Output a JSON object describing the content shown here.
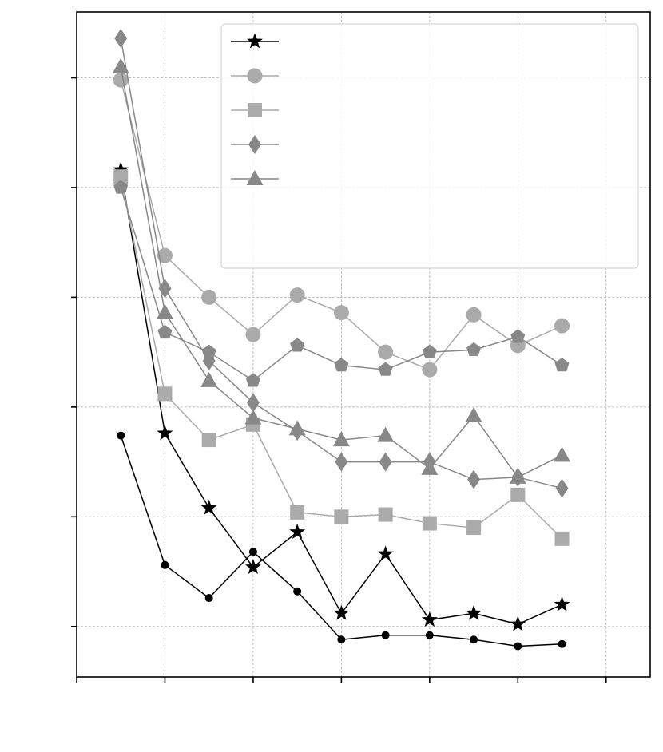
{
  "chart_data": {
    "type": "line",
    "x": [
      1,
      2,
      3,
      4,
      5,
      6,
      7,
      8,
      9,
      10,
      11
    ],
    "xlim": [
      0,
      13
    ],
    "ylim": [
      -0.23,
      2.8
    ],
    "grid": true,
    "legend_position": "top-right",
    "series": [
      {
        "marker": "circle-small",
        "color": "#000000",
        "values": [
          0.87,
          0.28,
          0.13,
          0.34,
          0.16,
          -0.06,
          -0.04,
          -0.04,
          -0.06,
          -0.09,
          -0.08
        ]
      },
      {
        "marker": "star",
        "color": "#000000",
        "values": [
          2.08,
          0.88,
          0.54,
          0.27,
          0.43,
          0.06,
          0.33,
          0.03,
          0.06,
          0.01,
          0.1
        ]
      },
      {
        "marker": "circle",
        "color": "#aaaaaa",
        "values": [
          2.49,
          1.69,
          1.5,
          1.33,
          1.51,
          1.43,
          1.25,
          1.17,
          1.42,
          1.28,
          1.37
        ]
      },
      {
        "marker": "square",
        "color": "#aaaaaa",
        "values": [
          2.05,
          1.06,
          0.85,
          0.92,
          0.52,
          0.5,
          0.51,
          0.47,
          0.45,
          0.6,
          0.4
        ]
      },
      {
        "marker": "diamond",
        "color": "#888888",
        "values": [
          2.68,
          1.54,
          1.21,
          1.02,
          0.89,
          0.75,
          0.75,
          0.75,
          0.67,
          0.68,
          0.63
        ]
      },
      {
        "marker": "triangle",
        "color": "#888888",
        "values": [
          2.55,
          1.43,
          1.12,
          0.95,
          0.9,
          0.85,
          0.87,
          0.72,
          0.96,
          0.68,
          0.78
        ]
      },
      {
        "marker": "pentagon",
        "color": "#888888",
        "values": [
          2.0,
          1.34,
          1.25,
          1.12,
          1.28,
          1.19,
          1.17,
          1.25,
          1.26,
          1.32,
          1.19
        ]
      }
    ],
    "legend_entries": [
      {
        "marker": "star",
        "color": "#000000"
      },
      {
        "marker": "circle",
        "color": "#aaaaaa"
      },
      {
        "marker": "square",
        "color": "#aaaaaa"
      },
      {
        "marker": "diamond",
        "color": "#888888"
      },
      {
        "marker": "triangle",
        "color": "#888888"
      }
    ]
  }
}
